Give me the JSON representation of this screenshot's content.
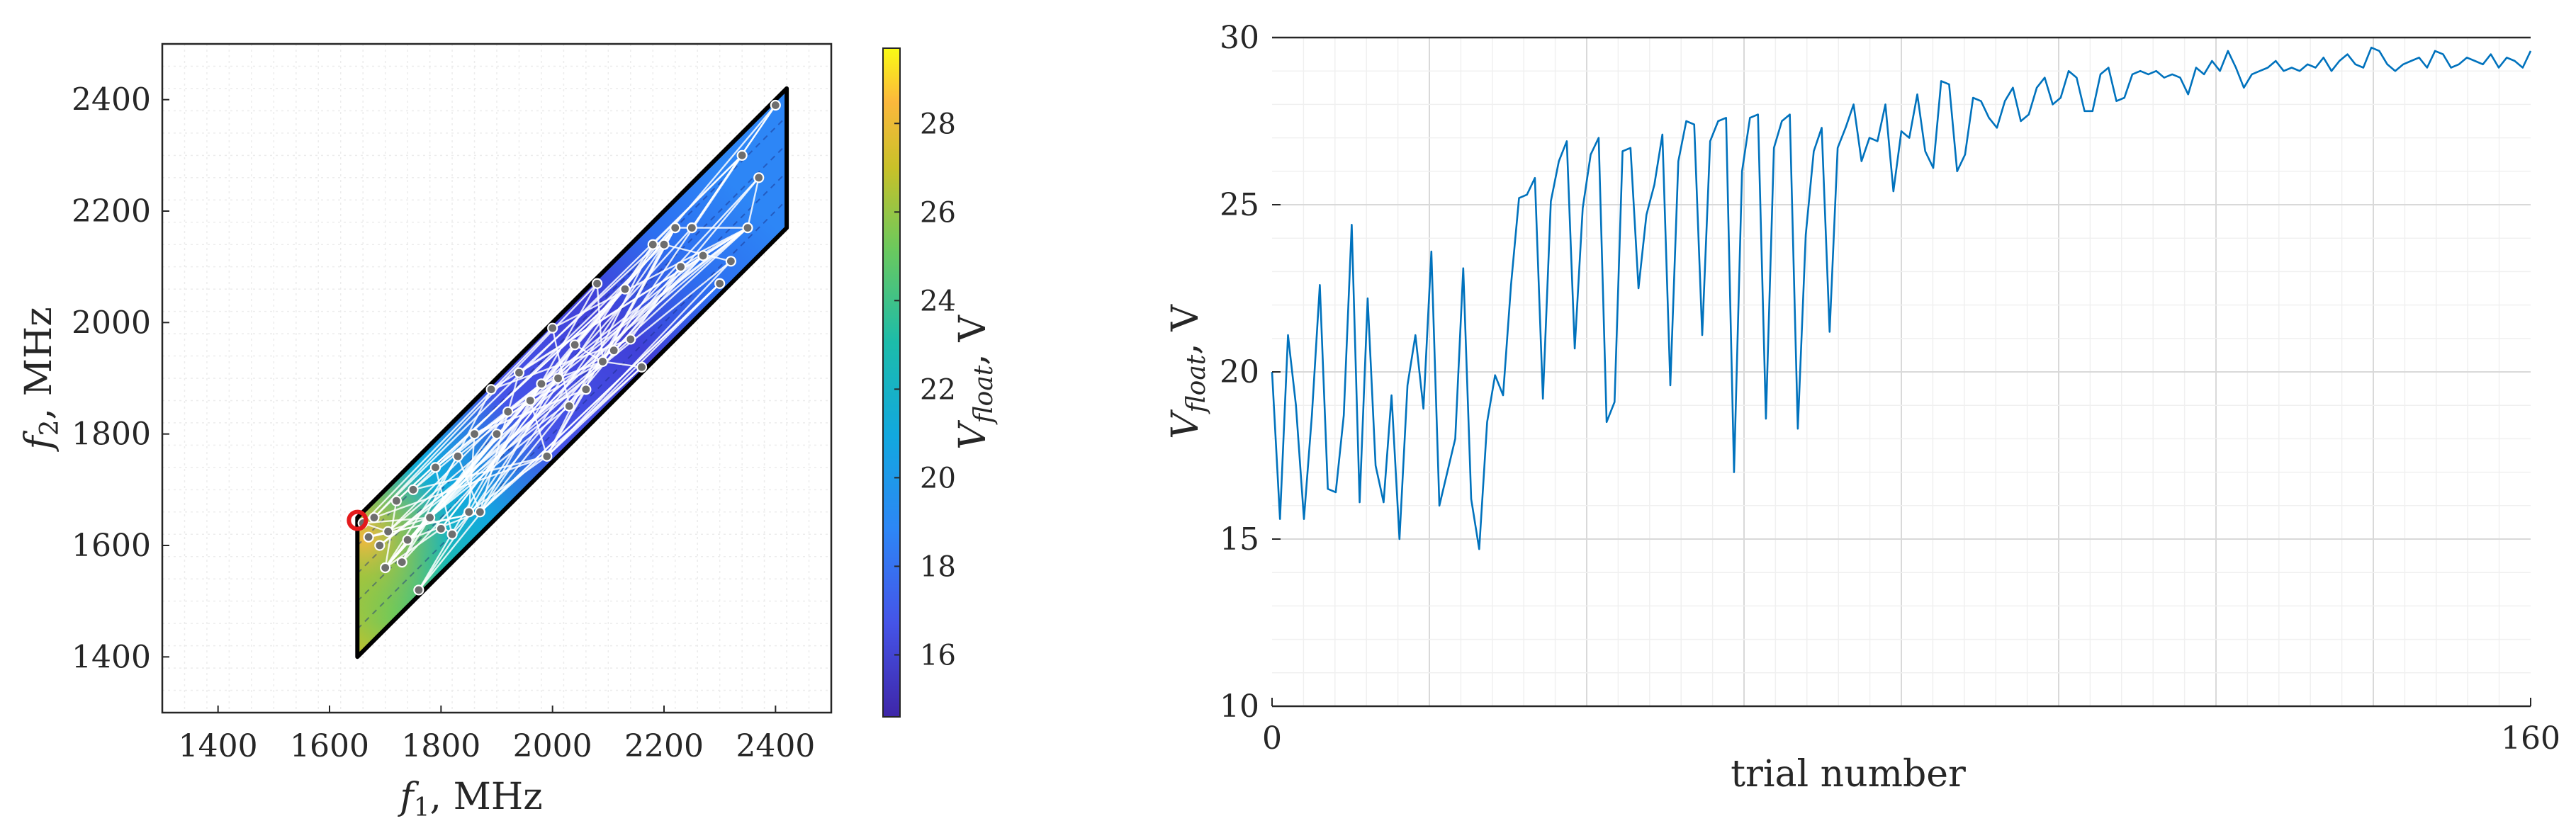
{
  "chart_data": [
    {
      "type": "scatter",
      "panel": "left",
      "xlabel": "f",
      "xlabel_sub": "1",
      "xlabel_unit": ", MHz",
      "ylabel": "f",
      "ylabel_sub": "2",
      "ylabel_unit": ", MHz",
      "xlim": [
        1300,
        2500
      ],
      "ylim": [
        1300,
        2500
      ],
      "xticks": [
        1400,
        1600,
        1800,
        2000,
        2200,
        2400
      ],
      "yticks": [
        1400,
        1600,
        1800,
        2000,
        2200,
        2400
      ],
      "grid": "major+minor",
      "region": {
        "f1": [
          1650,
          2420
        ],
        "f2": [
          1400,
          2420
        ],
        "note_f2_minus_f1": [
          -250,
          0
        ]
      },
      "colorbar": {
        "label": "V",
        "label_sub": "float",
        "label_unit": ",  V",
        "range": [
          14.6,
          29.7
        ],
        "ticks": [
          16,
          18,
          20,
          22,
          24,
          26,
          28
        ],
        "colormap": "parula"
      },
      "best_point": {
        "f1": 1650,
        "f2": 1645,
        "color": "#e41a1c"
      },
      "trial_points": [
        [
          1660,
          1640
        ],
        [
          1670,
          1615
        ],
        [
          1680,
          1650
        ],
        [
          1690,
          1600
        ],
        [
          1700,
          1560
        ],
        [
          1705,
          1625
        ],
        [
          1720,
          1680
        ],
        [
          1730,
          1570
        ],
        [
          1740,
          1610
        ],
        [
          1750,
          1700
        ],
        [
          1760,
          1520
        ],
        [
          1780,
          1650
        ],
        [
          1790,
          1740
        ],
        [
          1800,
          1630
        ],
        [
          1820,
          1620
        ],
        [
          1830,
          1760
        ],
        [
          1850,
          1660
        ],
        [
          1860,
          1800
        ],
        [
          1870,
          1660
        ],
        [
          1890,
          1880
        ],
        [
          1900,
          1800
        ],
        [
          1920,
          1840
        ],
        [
          1940,
          1910
        ],
        [
          1960,
          1860
        ],
        [
          1980,
          1890
        ],
        [
          1990,
          1760
        ],
        [
          2000,
          1990
        ],
        [
          2010,
          1900
        ],
        [
          2030,
          1850
        ],
        [
          2040,
          1960
        ],
        [
          2060,
          1880
        ],
        [
          2080,
          2070
        ],
        [
          2090,
          1930
        ],
        [
          2110,
          1950
        ],
        [
          2130,
          2060
        ],
        [
          2140,
          1970
        ],
        [
          2160,
          1920
        ],
        [
          2180,
          2140
        ],
        [
          2200,
          2140
        ],
        [
          2220,
          2170
        ],
        [
          2230,
          2100
        ],
        [
          2250,
          2170
        ],
        [
          2270,
          2120
        ],
        [
          2300,
          2070
        ],
        [
          2320,
          2110
        ],
        [
          2340,
          2300
        ],
        [
          2350,
          2170
        ],
        [
          2370,
          2260
        ],
        [
          2400,
          2390
        ]
      ]
    },
    {
      "type": "line",
      "panel": "right",
      "xlabel": "trial number",
      "ylabel": "V",
      "ylabel_sub": "float",
      "ylabel_unit": ",  V",
      "xlim": [
        0,
        160
      ],
      "ylim": [
        10,
        30
      ],
      "xticks": [
        0,
        160
      ],
      "yticks": [
        10,
        15,
        20,
        25,
        30
      ],
      "grid": "major+minor",
      "color": "#0072bd",
      "series": [
        {
          "values": [
            20.0,
            15.6,
            21.1,
            19.0,
            15.6,
            18.7,
            22.6,
            16.5,
            16.4,
            18.7,
            24.4,
            16.1,
            22.2,
            17.2,
            16.1,
            19.3,
            15.0,
            19.6,
            21.1,
            18.9,
            23.6,
            16.0,
            17.0,
            18.0,
            23.1,
            16.2,
            14.7,
            18.5,
            19.9,
            19.3,
            22.6,
            25.2,
            25.3,
            25.8,
            19.2,
            25.1,
            26.3,
            26.9,
            20.7,
            24.9,
            26.5,
            27.0,
            18.5,
            19.1,
            26.6,
            26.7,
            22.5,
            24.7,
            25.6,
            27.1,
            19.6,
            26.3,
            27.5,
            27.4,
            21.1,
            26.9,
            27.5,
            27.6,
            17.0,
            26.0,
            27.6,
            27.7,
            18.6,
            26.7,
            27.5,
            27.7,
            18.3,
            24.1,
            26.6,
            27.3,
            21.2,
            26.7,
            27.3,
            28.0,
            26.3,
            27.0,
            26.9,
            28.0,
            25.4,
            27.2,
            27.0,
            28.3,
            26.6,
            26.1,
            28.7,
            28.6,
            26.0,
            26.5,
            28.2,
            28.1,
            27.6,
            27.3,
            28.1,
            28.5,
            27.5,
            27.7,
            28.5,
            28.8,
            28.0,
            28.2,
            29.0,
            28.8,
            27.8,
            27.8,
            28.9,
            29.1,
            28.1,
            28.2,
            28.9,
            29.0,
            28.9,
            29.0,
            28.8,
            28.9,
            28.8,
            28.3,
            29.1,
            28.9,
            29.3,
            29.0,
            29.6,
            29.1,
            28.5,
            28.9,
            29.0,
            29.1,
            29.3,
            29.0,
            29.1,
            29.0,
            29.2,
            29.1,
            29.4,
            29.0,
            29.3,
            29.5,
            29.2,
            29.1,
            29.7,
            29.6,
            29.2,
            29.0,
            29.2,
            29.3,
            29.4,
            29.1,
            29.6,
            29.5,
            29.1,
            29.2,
            29.4,
            29.3,
            29.2,
            29.5,
            29.1,
            29.4,
            29.3,
            29.1,
            29.6
          ]
        }
      ]
    }
  ]
}
